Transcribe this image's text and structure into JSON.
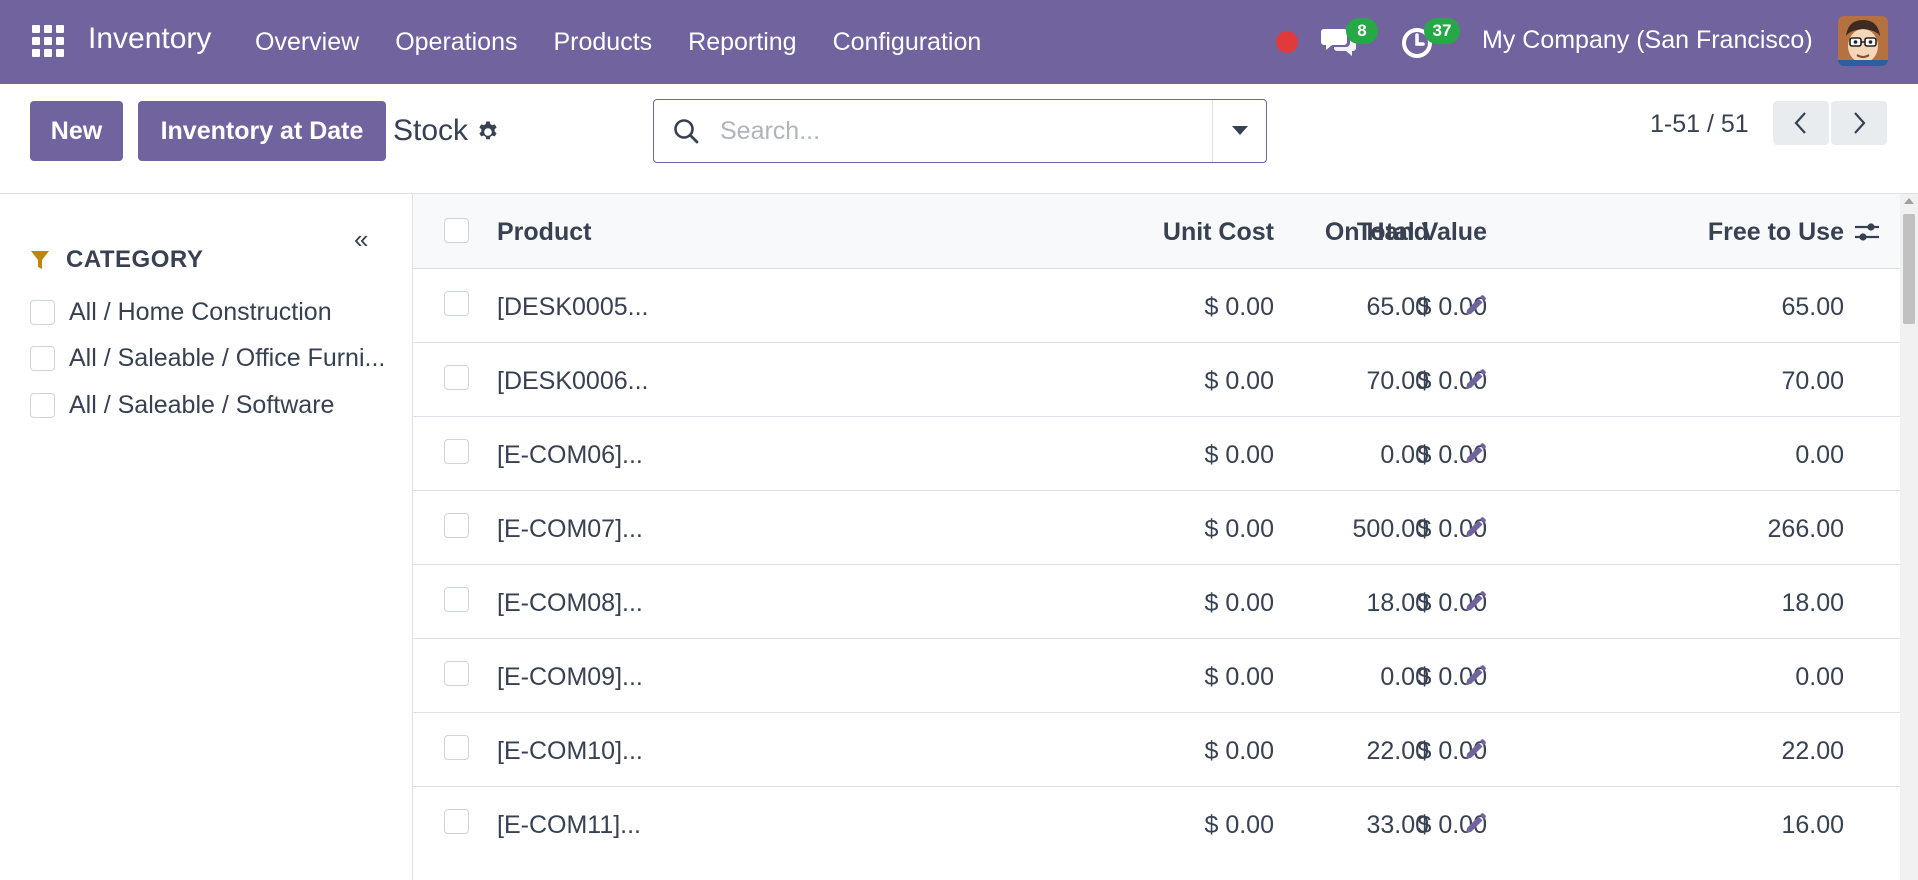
{
  "navbar": {
    "app_name": "Inventory",
    "menu": [
      "Overview",
      "Operations",
      "Products",
      "Reporting",
      "Configuration"
    ],
    "messages_count": "8",
    "activities_count": "37",
    "company": "My Company (San Francisco)"
  },
  "control": {
    "new_label": "New",
    "inventory_at_date_label": "Inventory at Date",
    "title": "Stock",
    "search_placeholder": "Search...",
    "pager": "1-51 / 51"
  },
  "sidebar": {
    "category_title": "CATEGORY",
    "categories": [
      "All / Home Construction",
      "All / Saleable / Office Furni...",
      "All / Saleable / Software"
    ]
  },
  "table": {
    "headers": {
      "product": "Product",
      "unit_cost": "Unit Cost",
      "total_value": "Total Value",
      "on_hand": "On Hand",
      "free_to_use": "Free to Use"
    },
    "rows": [
      {
        "product": "[DESK0005...",
        "unit_cost": "$ 0.00",
        "total_value": "$ 0.00",
        "on_hand": "65.00",
        "free": "65.00"
      },
      {
        "product": "[DESK0006...",
        "unit_cost": "$ 0.00",
        "total_value": "$ 0.00",
        "on_hand": "70.00",
        "free": "70.00"
      },
      {
        "product": "[E-COM06]...",
        "unit_cost": "$ 0.00",
        "total_value": "$ 0.00",
        "on_hand": "0.00",
        "free": "0.00"
      },
      {
        "product": "[E-COM07]...",
        "unit_cost": "$ 0.00",
        "total_value": "$ 0.00",
        "on_hand": "500.00",
        "free": "266.00"
      },
      {
        "product": "[E-COM08]...",
        "unit_cost": "$ 0.00",
        "total_value": "$ 0.00",
        "on_hand": "18.00",
        "free": "18.00"
      },
      {
        "product": "[E-COM09]...",
        "unit_cost": "$ 0.00",
        "total_value": "$ 0.00",
        "on_hand": "0.00",
        "free": "0.00"
      },
      {
        "product": "[E-COM10]...",
        "unit_cost": "$ 0.00",
        "total_value": "$ 0.00",
        "on_hand": "22.00",
        "free": "22.00"
      },
      {
        "product": "[E-COM11]...",
        "unit_cost": "$ 0.00",
        "total_value": "$ 0.00",
        "on_hand": "33.00",
        "free": "16.00"
      }
    ]
  },
  "colors": {
    "brand": "#71639e",
    "badge": "#27a847",
    "recording": "#e03a3a",
    "filter": "#c0850f"
  },
  "icons": {
    "apps": "apps-grid-icon",
    "messages": "chat-icon",
    "activities": "clock-icon",
    "settings": "gear-icon",
    "search": "search-icon",
    "edit": "pencil-icon",
    "filter": "filter-icon",
    "optional_columns": "sliders-icon"
  }
}
